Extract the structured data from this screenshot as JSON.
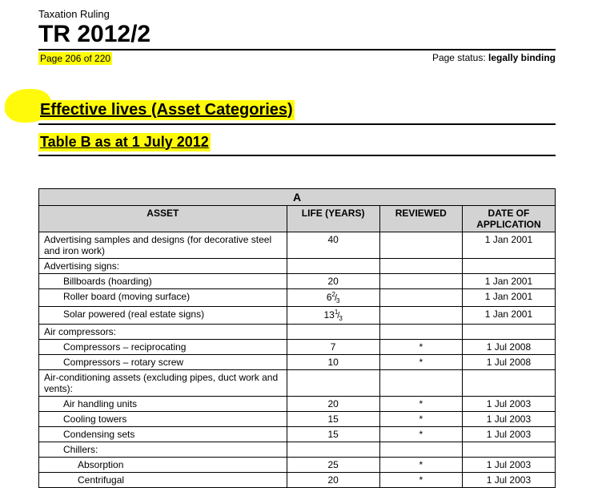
{
  "header": {
    "doc_type": "Taxation Ruling",
    "ruling_number": "TR 2012/2",
    "page_label": "Page 206 of 220",
    "page_status_prefix": "Page status:  ",
    "page_status_value": "legally binding"
  },
  "section": {
    "title": "Effective lives (Asset Categories)",
    "subtitle": "Table B as at 1 July 2012"
  },
  "highlight_color": "#fffa0a",
  "table": {
    "letter": "A",
    "columns": {
      "asset": "ASSET",
      "life": "LIFE (YEARS)",
      "reviewed": "REVIEWED",
      "date": "DATE OF APPLICATION"
    },
    "rows": [
      {
        "asset": "Advertising samples and designs (for decorative steel and iron work)",
        "indent": 0,
        "life": "40",
        "reviewed": "",
        "date": "1 Jan 2001"
      },
      {
        "asset": "Advertising signs:",
        "indent": 0,
        "life": "",
        "reviewed": "",
        "date": ""
      },
      {
        "asset": "Billboards (hoarding)",
        "indent": 1,
        "life": "20",
        "reviewed": "",
        "date": "1 Jan 2001"
      },
      {
        "asset": "Roller board (moving surface)",
        "indent": 1,
        "life_frac": {
          "whole": "6",
          "num": "2",
          "den": "3"
        },
        "reviewed": "",
        "date": "1 Jan 2001"
      },
      {
        "asset": "Solar powered (real estate signs)",
        "indent": 1,
        "life_frac": {
          "whole": "13",
          "num": "1",
          "den": "3"
        },
        "reviewed": "",
        "date": "1 Jan 2001"
      },
      {
        "asset": "Air compressors:",
        "indent": 0,
        "life": "",
        "reviewed": "",
        "date": ""
      },
      {
        "asset": "Compressors – reciprocating",
        "indent": 1,
        "life": "7",
        "reviewed": "*",
        "date": "1 Jul 2008"
      },
      {
        "asset": "Compressors – rotary screw",
        "indent": 1,
        "life": "10",
        "reviewed": "*",
        "date": "1 Jul 2008"
      },
      {
        "asset": "Air-conditioning assets (excluding pipes, duct work and vents):",
        "indent": 0,
        "life": "",
        "reviewed": "",
        "date": ""
      },
      {
        "asset": "Air handling units",
        "indent": 1,
        "life": "20",
        "reviewed": "*",
        "date": "1 Jul 2003"
      },
      {
        "asset": "Cooling towers",
        "indent": 1,
        "life": "15",
        "reviewed": "*",
        "date": "1 Jul 2003"
      },
      {
        "asset": "Condensing sets",
        "indent": 1,
        "life": "15",
        "reviewed": "*",
        "date": "1 Jul 2003"
      },
      {
        "asset": "Chillers:",
        "indent": 1,
        "life": "",
        "reviewed": "",
        "date": ""
      },
      {
        "asset": "Absorption",
        "indent": 2,
        "life": "25",
        "reviewed": "*",
        "date": "1 Jul 2003"
      },
      {
        "asset": "Centrifugal",
        "indent": 2,
        "life": "20",
        "reviewed": "*",
        "date": "1 Jul 2003"
      }
    ]
  }
}
